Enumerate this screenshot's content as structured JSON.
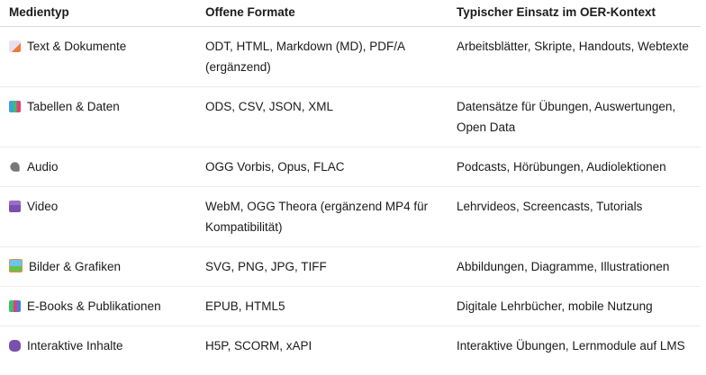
{
  "headers": [
    "Medientyp",
    "Offene Formate",
    "Typischer Einsatz im OER-Kontext"
  ],
  "rows": [
    {
      "icon": "memo-icon",
      "type": "Text & Dokumente",
      "formats": "ODT, HTML, Markdown (MD), PDF/A (ergänzend)",
      "use": "Arbeitsblätter, Skripte, Handouts, Webtexte"
    },
    {
      "icon": "bar-chart-icon",
      "type": "Tabellen & Daten",
      "formats": "ODS, CSV, JSON, XML",
      "use": "Datensätze für Übungen, Auswertungen, Open Data"
    },
    {
      "icon": "microphone-icon",
      "type": "Audio",
      "formats": "OGG Vorbis, Opus, FLAC",
      "use": "Podcasts, Hörübungen, Audiolektionen"
    },
    {
      "icon": "clapper-board-icon",
      "type": "Video",
      "formats": "WebM, OGG Theora (ergänzend MP4 für Kompatibilität)",
      "use": "Lehrvideos, Screencasts, Tutorials"
    },
    {
      "icon": "framed-picture-icon",
      "type": "Bilder & Grafiken",
      "formats": "SVG, PNG, JPG, TIFF",
      "use": "Abbildungen, Diagramme, Illustrationen"
    },
    {
      "icon": "books-icon",
      "type": "E-Books & Publikationen",
      "formats": "EPUB, HTML5",
      "use": "Digitale Lehrbücher, mobile Nutzung"
    },
    {
      "icon": "game-controller-icon",
      "type": "Interaktive Inhalte",
      "formats": "H5P, SCORM, xAPI",
      "use": "Interaktive Übungen, Lernmodule auf LMS"
    }
  ]
}
